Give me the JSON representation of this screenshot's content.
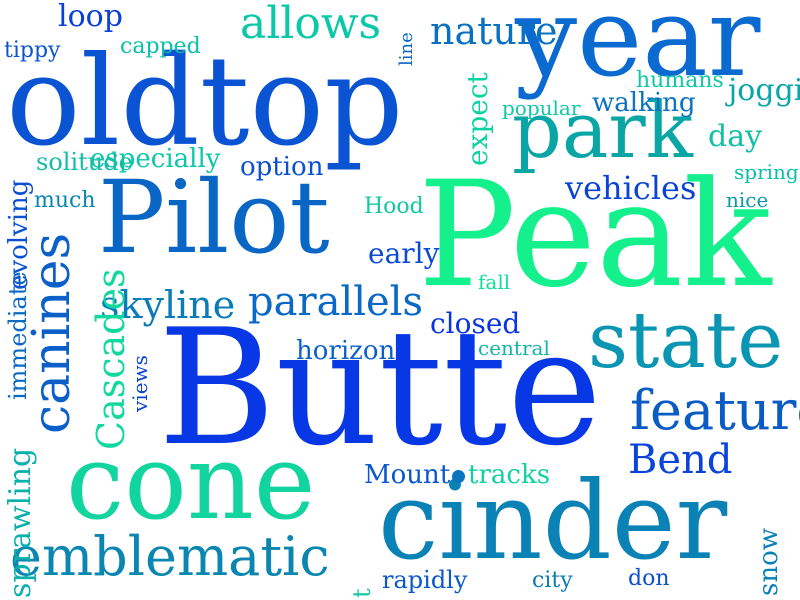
{
  "words": [
    {
      "text": "Peak",
      "color": "#14f08c"
    },
    {
      "text": "Butte",
      "color": "#0838e6"
    },
    {
      "text": "oldtop",
      "color": "#0a54d4"
    },
    {
      "text": "year",
      "color": "#0a6ad0"
    },
    {
      "text": "Pilot",
      "color": "#0a66c4"
    },
    {
      "text": "cinder",
      "color": "#0a82b6"
    },
    {
      "text": "cone",
      "color": "#12d49e"
    },
    {
      "text": "park",
      "color": "#0aa6a6"
    },
    {
      "text": "state",
      "color": "#0a96b2"
    },
    {
      "text": "emblematic",
      "color": "#0a86b0"
    },
    {
      "text": "feature",
      "color": "#0a5cc4"
    },
    {
      "text": "Bend",
      "color": "#0a44da"
    },
    {
      "text": "parallels",
      "color": "#0a68c6"
    },
    {
      "text": "skyline",
      "color": "#0a7cb8"
    },
    {
      "text": "allows",
      "color": "#0ac8a8"
    },
    {
      "text": "nature",
      "color": "#0a70c2"
    },
    {
      "text": "loop",
      "color": "#0a40d8"
    },
    {
      "text": "vehicles",
      "color": "#0a44d6"
    },
    {
      "text": "closed",
      "color": "#0a34e2"
    },
    {
      "text": "especially",
      "color": "#0ac8a8"
    },
    {
      "text": "option",
      "color": "#0a50d2"
    },
    {
      "text": "solitude",
      "color": "#12bca6"
    },
    {
      "text": "walking",
      "color": "#0a72c0"
    },
    {
      "text": "popular",
      "color": "#12c8a4"
    },
    {
      "text": "humans",
      "color": "#12c8a4"
    },
    {
      "text": "jogging",
      "color": "#0aa6a8"
    },
    {
      "text": "day",
      "color": "#12c0a6"
    },
    {
      "text": "spring",
      "color": "#0ac0aa"
    },
    {
      "text": "nice",
      "color": "#0a9ab0"
    },
    {
      "text": "horizon",
      "color": "#0a60c8"
    },
    {
      "text": "central",
      "color": "#12b4a8"
    },
    {
      "text": "fall",
      "color": "#12e096"
    },
    {
      "text": "early",
      "color": "#0a4ad4"
    },
    {
      "text": "Hood",
      "color": "#12c8a4"
    },
    {
      "text": "Mount",
      "color": "#0a58cc"
    },
    {
      "text": "tracks",
      "color": "#12d0a0"
    },
    {
      "text": "rapidly",
      "color": "#0a58cc"
    },
    {
      "text": "city",
      "color": "#0a7ab8"
    },
    {
      "text": "don",
      "color": "#0a50d0"
    },
    {
      "text": "tippy",
      "color": "#0a54cc"
    },
    {
      "text": "capped",
      "color": "#0ac0aa"
    },
    {
      "text": "much",
      "color": "#0a86b4"
    },
    {
      "text": "canines",
      "color": "#0a60c8"
    },
    {
      "text": "Cascades",
      "color": "#12d8a0"
    },
    {
      "text": "immediate",
      "color": "#0a6ac4"
    },
    {
      "text": "evolving",
      "color": "#0a50d2"
    },
    {
      "text": "sprawling",
      "color": "#0ab0ac"
    },
    {
      "text": "expect",
      "color": "#0ad2a2"
    },
    {
      "text": "views",
      "color": "#0a44d6"
    },
    {
      "text": "t",
      "color": "#12c8a4"
    },
    {
      "text": "snow",
      "color": "#0a80b8"
    },
    {
      "text": "line",
      "color": "#0a64c6"
    }
  ],
  "dot_color": "#0a74bc"
}
